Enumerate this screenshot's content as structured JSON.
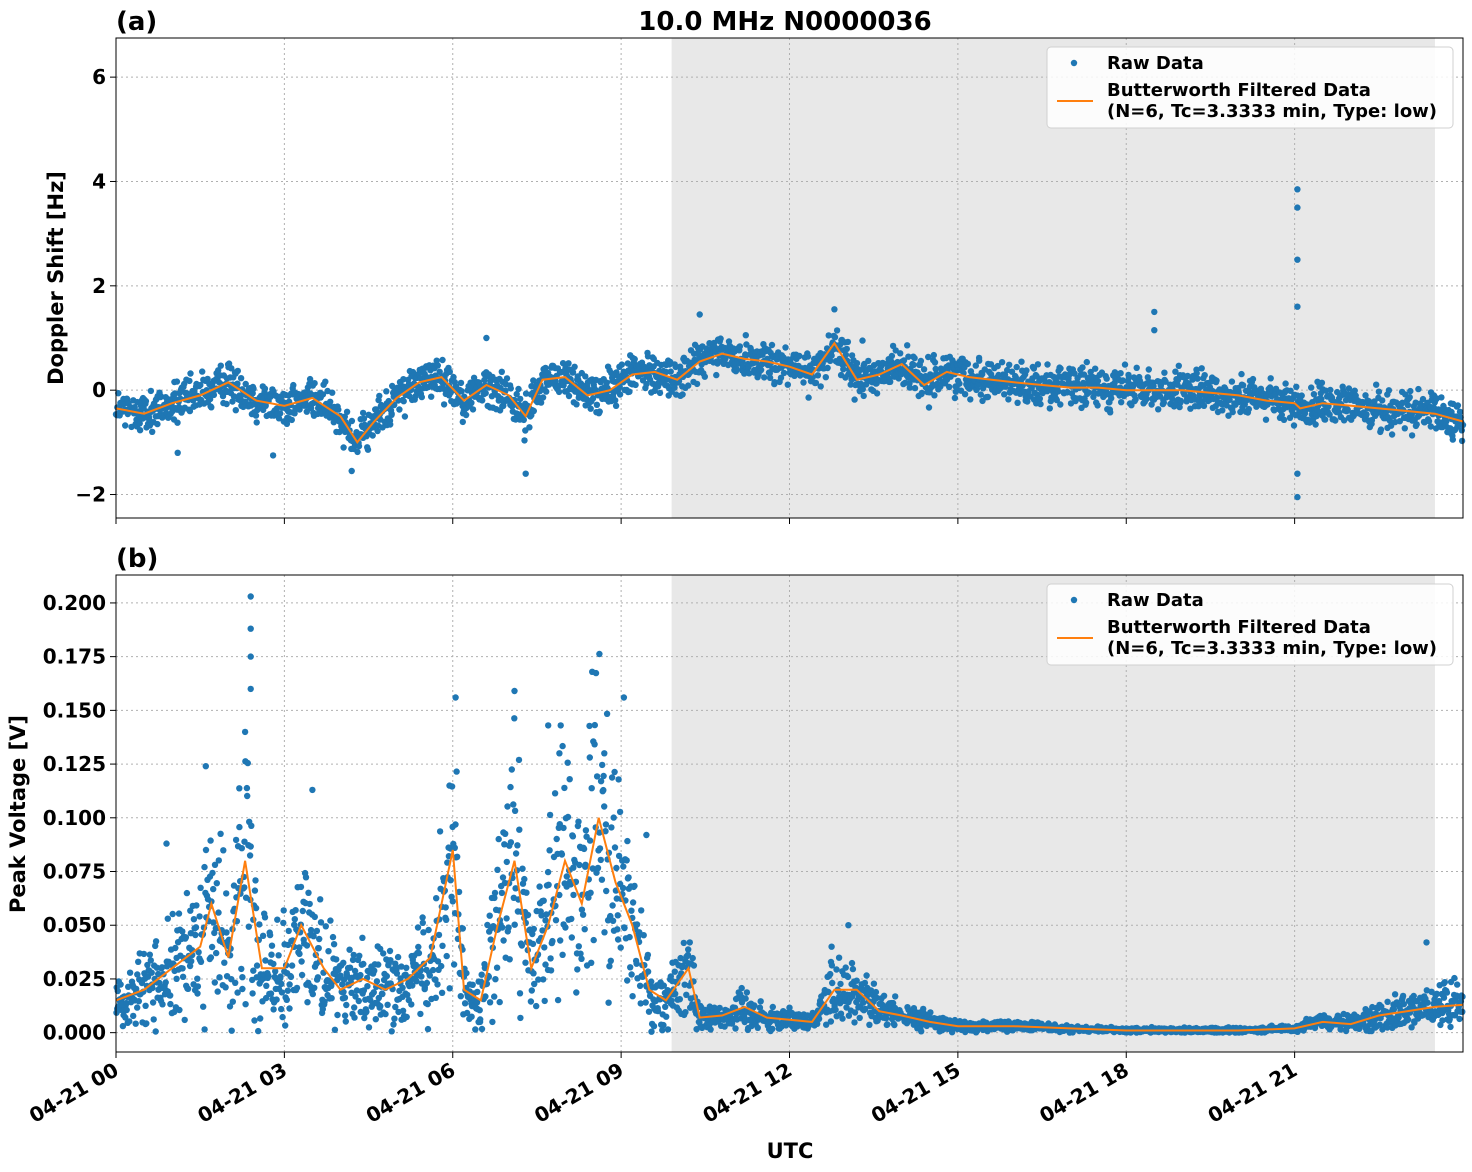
{
  "figure": {
    "title": "10.0 MHz N0000036"
  },
  "x_axis": {
    "label": "UTC",
    "tick_labels": [
      "04-21 00",
      "04-21 03",
      "04-21 06",
      "04-21 09",
      "04-21 12",
      "04-21 15",
      "04-21 18",
      "04-21 21"
    ]
  },
  "legend": {
    "raw": "Raw Data",
    "filtered_line1": "Butterworth Filtered Data",
    "filtered_line2": "(N=6, Tc=3.3333 min, Type: low)"
  },
  "colors": {
    "raw": "#1f77b4",
    "filtered": "#ff7f0e",
    "shade": "#e8e8e8"
  },
  "chart_data": [
    {
      "type": "scatter",
      "panel": "(a)",
      "title": "10.0 MHz N0000036",
      "xlabel": "",
      "ylabel": "Doppler Shift [Hz]",
      "xlim_hours": [
        0,
        24
      ],
      "ylim": [
        -2.45,
        6.75
      ],
      "yticks": [
        -2,
        0,
        2,
        4,
        6
      ],
      "ytick_labels": [
        "−2",
        "0",
        "2",
        "4",
        "6"
      ],
      "shaded_hours": [
        9.9,
        23.5
      ],
      "grid": true,
      "legend_position": "top-right",
      "series": [
        {
          "name": "Butterworth Filtered Data",
          "kind": "line",
          "x_hours": [
            0,
            0.5,
            1,
            1.5,
            2,
            2.5,
            3,
            3.5,
            4,
            4.3,
            4.6,
            5,
            5.4,
            5.8,
            6.2,
            6.6,
            7,
            7.3,
            7.6,
            8,
            8.4,
            8.8,
            9.2,
            9.6,
            10,
            10.4,
            10.8,
            11.2,
            11.6,
            12,
            12.4,
            12.8,
            13.2,
            13.6,
            14,
            14.4,
            14.8,
            15.2,
            15.6,
            16,
            16.5,
            17,
            17.5,
            18,
            18.5,
            19,
            19.5,
            20,
            20.5,
            21,
            21.1,
            21.5,
            22,
            22.5,
            23,
            23.5,
            24
          ],
          "y": [
            -0.35,
            -0.45,
            -0.25,
            -0.1,
            0.15,
            -0.2,
            -0.3,
            -0.15,
            -0.5,
            -1.0,
            -0.6,
            -0.15,
            0.15,
            0.25,
            -0.2,
            0.1,
            -0.1,
            -0.5,
            0.2,
            0.25,
            -0.1,
            0.0,
            0.3,
            0.35,
            0.2,
            0.55,
            0.7,
            0.6,
            0.55,
            0.45,
            0.3,
            0.9,
            0.2,
            0.3,
            0.5,
            0.1,
            0.35,
            0.25,
            0.2,
            0.15,
            0.1,
            0.05,
            0.05,
            0.0,
            0.0,
            0.0,
            -0.05,
            -0.1,
            -0.2,
            -0.25,
            -0.35,
            -0.25,
            -0.3,
            -0.35,
            -0.4,
            -0.45,
            -0.6
          ]
        },
        {
          "name": "Raw Data",
          "kind": "points",
          "spread": 0.55,
          "outliers": [
            [
              21.05,
              3.85
            ],
            [
              21.05,
              3.5
            ],
            [
              21.05,
              2.5
            ],
            [
              21.05,
              1.6
            ],
            [
              21.05,
              -1.6
            ],
            [
              21.05,
              -2.05
            ],
            [
              18.5,
              1.5
            ],
            [
              18.5,
              1.15
            ],
            [
              13.3,
              0.95
            ],
            [
              12.8,
              1.55
            ],
            [
              10.4,
              1.45
            ],
            [
              6.6,
              1.0
            ],
            [
              4.2,
              -1.55
            ],
            [
              7.3,
              -1.6
            ],
            [
              1.1,
              -1.2
            ],
            [
              2.8,
              -1.25
            ]
          ]
        }
      ]
    },
    {
      "type": "scatter",
      "panel": "(b)",
      "title": "",
      "xlabel": "UTC",
      "ylabel": "Peak Voltage [V]",
      "xlim_hours": [
        0,
        24
      ],
      "ylim": [
        -0.009,
        0.213
      ],
      "yticks": [
        0.0,
        0.025,
        0.05,
        0.075,
        0.1,
        0.125,
        0.15,
        0.175,
        0.2
      ],
      "ytick_labels": [
        "0.000",
        "0.025",
        "0.050",
        "0.075",
        "0.100",
        "0.125",
        "0.150",
        "0.175",
        "0.200"
      ],
      "shaded_hours": [
        9.9,
        23.5
      ],
      "grid": true,
      "legend_position": "top-right",
      "series": [
        {
          "name": "Butterworth Filtered Data",
          "kind": "line",
          "x_hours": [
            0,
            0.5,
            1,
            1.5,
            1.7,
            2,
            2.3,
            2.6,
            3,
            3.3,
            3.7,
            4,
            4.4,
            4.8,
            5.2,
            5.6,
            6,
            6.2,
            6.5,
            6.8,
            7.1,
            7.4,
            7.7,
            8,
            8.3,
            8.6,
            8.9,
            9.2,
            9.5,
            9.8,
            10.2,
            10.4,
            10.8,
            11.2,
            11.6,
            12,
            12.4,
            12.8,
            13.2,
            13.6,
            14,
            14.5,
            15,
            16,
            17,
            18,
            19,
            20,
            21,
            21.5,
            22,
            22.5,
            23,
            23.5,
            24
          ],
          "y": [
            0.015,
            0.02,
            0.03,
            0.04,
            0.06,
            0.035,
            0.08,
            0.03,
            0.03,
            0.05,
            0.03,
            0.02,
            0.025,
            0.02,
            0.025,
            0.035,
            0.085,
            0.02,
            0.015,
            0.05,
            0.08,
            0.03,
            0.05,
            0.08,
            0.06,
            0.1,
            0.07,
            0.05,
            0.02,
            0.015,
            0.03,
            0.007,
            0.008,
            0.012,
            0.007,
            0.006,
            0.005,
            0.02,
            0.02,
            0.01,
            0.008,
            0.005,
            0.003,
            0.003,
            0.002,
            0.001,
            0.001,
            0.001,
            0.002,
            0.005,
            0.004,
            0.008,
            0.01,
            0.012,
            0.013
          ]
        },
        {
          "name": "Raw Data",
          "kind": "points",
          "spread_factor": 1.2,
          "outliers": [
            [
              2.4,
              0.203
            ],
            [
              2.4,
              0.188
            ],
            [
              2.4,
              0.175
            ],
            [
              2.4,
              0.16
            ],
            [
              2.3,
              0.14
            ],
            [
              1.6,
              0.124
            ],
            [
              7.1,
              0.159
            ],
            [
              6.05,
              0.156
            ],
            [
              9.05,
              0.156
            ],
            [
              8.7,
              0.13
            ],
            [
              7.7,
              0.143
            ],
            [
              7.9,
              0.13
            ],
            [
              3.5,
              0.113
            ],
            [
              0.9,
              0.088
            ],
            [
              13.05,
              0.05
            ],
            [
              12.75,
              0.04
            ],
            [
              23.35,
              0.042
            ],
            [
              9.45,
              0.092
            ]
          ]
        }
      ]
    }
  ]
}
